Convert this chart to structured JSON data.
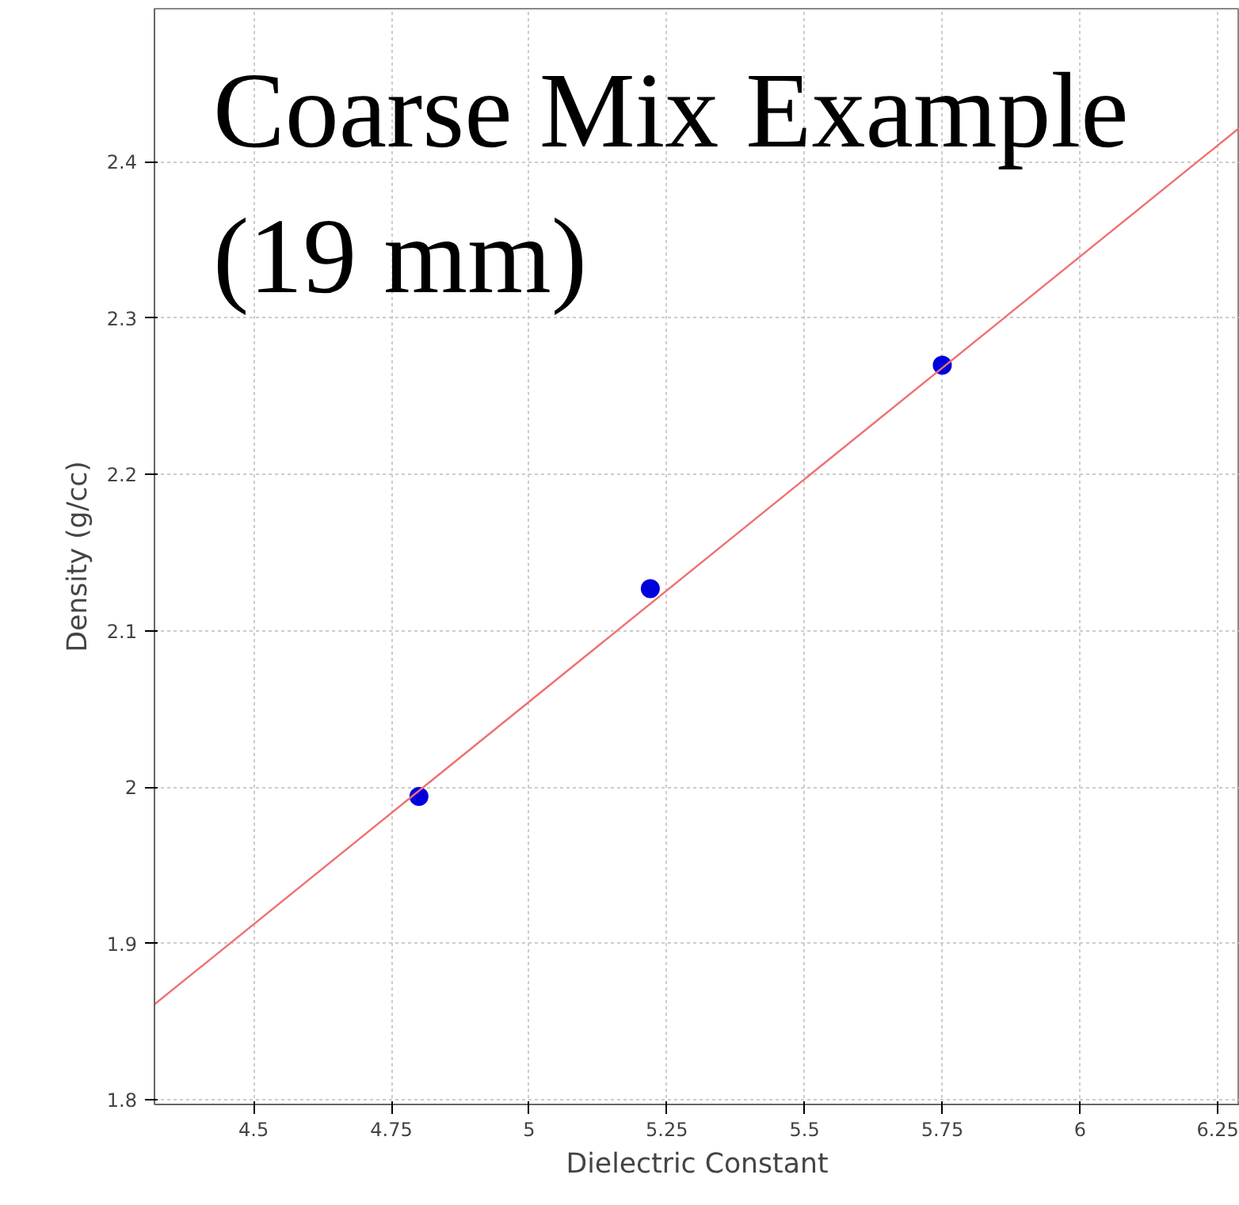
{
  "chart_data": {
    "type": "scatter",
    "title": "Coarse Mix Example (19 mm)",
    "xlabel": "Dielectric Constant",
    "ylabel": "Density (g/cc)",
    "xlim": [
      4.32,
      6.29
    ],
    "ylim": [
      1.797,
      2.498
    ],
    "xticks": [
      4.5,
      4.75,
      5,
      5.25,
      5.5,
      5.75,
      6,
      6.25
    ],
    "yticks": [
      1.8,
      1.9,
      2,
      2.1,
      2.2,
      2.3,
      2.4
    ],
    "grid": true,
    "marker": "circle",
    "series": [
      {
        "color": "#0000dd",
        "x": [
          4.8,
          5.22,
          5.75
        ],
        "values": [
          1.994,
          2.127,
          2.27
        ]
      },
      {
        "type": "line",
        "color": "#f07070",
        "marker": "none",
        "x": [
          4.32,
          6.29
        ],
        "values": [
          1.861,
          2.422
        ]
      }
    ]
  }
}
